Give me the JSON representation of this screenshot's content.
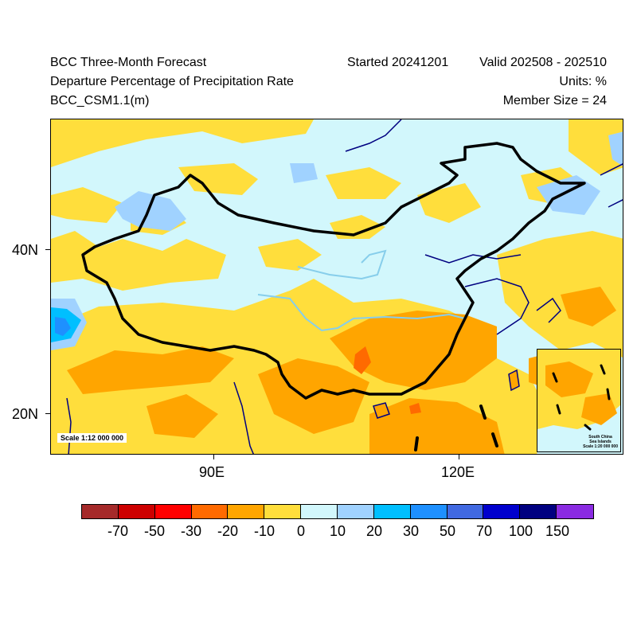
{
  "header": {
    "title": "BCC Three-Month Forecast",
    "subtitle": "Departure Percentage of Precipitation Rate",
    "model": "BCC_CSM1.1(m)",
    "started": "Started 20241201",
    "valid": "Valid 202508 - 202510",
    "units": "Units: %",
    "member_size": "Member Size = 24"
  },
  "map": {
    "scale_note": "Scale 1:12 000 000",
    "inset": {
      "label_line1": "South China",
      "label_line2": "Sea Islands",
      "label_line3": "Scale 1:20 000 000"
    },
    "x_tick_labels": [
      "90E",
      "120E"
    ],
    "y_tick_labels": [
      "40N",
      "20N"
    ]
  },
  "colorbar": {
    "colors": [
      "#a52a2a",
      "#cd0000",
      "#ff0000",
      "#ff6a00",
      "#ffa500",
      "#ffde3c",
      "#d2f7fc",
      "#a0d2ff",
      "#00bfff",
      "#1e90ff",
      "#4169e1",
      "#0000cd",
      "#000080",
      "#8a2be2"
    ],
    "labels": [
      "-70",
      "-50",
      "-30",
      "-20",
      "-10",
      "0",
      "10",
      "20",
      "30",
      "50",
      "70",
      "100",
      "150"
    ]
  }
}
